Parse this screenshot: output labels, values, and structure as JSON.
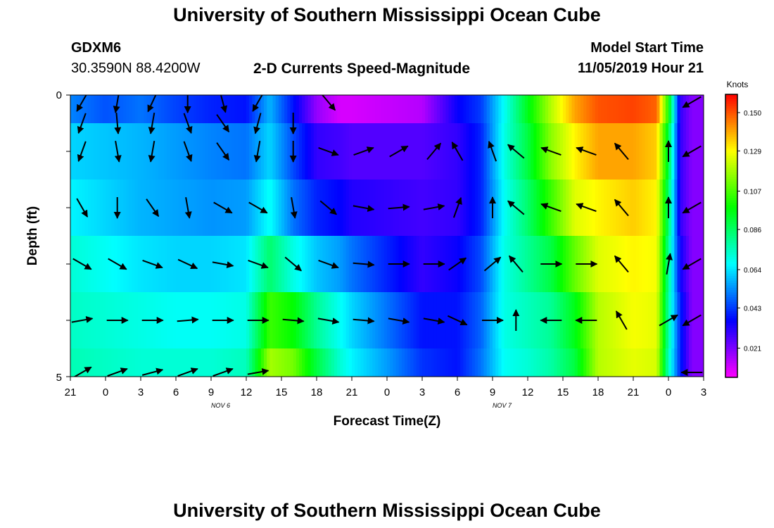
{
  "header": {
    "title": "University of Southern Mississippi Ocean Cube",
    "station": "GDXM6",
    "location": "30.3590N 88.4200W",
    "plot_title": "2-D Currents Speed-Magnitude",
    "model_start_label": "Model Start Time",
    "model_start_value": "11/05/2019 Hour 21"
  },
  "footer": {
    "title": "University of Southern Mississippi Ocean Cube"
  },
  "chart_data": {
    "type": "heatmap",
    "title": "2-D Currents Speed-Magnitude",
    "xlabel": "Forecast Time(Z)",
    "ylabel": "Depth (ft)",
    "x_tick_labels": [
      "21",
      "0",
      "3",
      "6",
      "9",
      "12",
      "15",
      "18",
      "21",
      "0",
      "3",
      "6",
      "9",
      "12",
      "15",
      "18",
      "21",
      "0",
      "3"
    ],
    "x_hours": [
      0,
      3,
      6,
      9,
      12,
      15,
      18,
      21,
      24,
      27,
      30,
      33,
      36,
      39,
      42,
      45,
      48,
      51,
      54
    ],
    "xlim": [
      0,
      54
    ],
    "date_labels": [
      {
        "text": "NOV 6",
        "hour": 15
      },
      {
        "text": "NOV 7",
        "hour": 39
      }
    ],
    "y_tick_labels": [
      "0",
      "5"
    ],
    "ylim": [
      0,
      5
    ],
    "depth_levels": [
      0,
      1,
      2,
      3,
      4,
      5
    ],
    "colorbar": {
      "unit": "Knots",
      "ticks": [
        "0.150",
        "0.129",
        "0.107",
        "0.086",
        "0.064",
        "0.043",
        "0.021"
      ],
      "tick_values": [
        0.15,
        0.129,
        0.107,
        0.086,
        0.064,
        0.043,
        0.021
      ],
      "range": [
        0.005,
        0.16
      ]
    },
    "speed_knots": {
      "time_hours": [
        0,
        3,
        6,
        9,
        12,
        15,
        17,
        19,
        21,
        23,
        24,
        27,
        30,
        33,
        35,
        37,
        39,
        41,
        43,
        45,
        48,
        50,
        51,
        52,
        53,
        54
      ],
      "depth_0": [
        0.052,
        0.046,
        0.05,
        0.044,
        0.04,
        0.038,
        0.058,
        0.038,
        0.018,
        0.01,
        0.01,
        0.012,
        0.014,
        0.035,
        0.043,
        0.068,
        0.095,
        0.12,
        0.14,
        0.15,
        0.152,
        0.148,
        0.1,
        0.03,
        0.02,
        0.02
      ],
      "depth_1": [
        0.062,
        0.06,
        0.058,
        0.055,
        0.052,
        0.05,
        0.062,
        0.045,
        0.03,
        0.028,
        0.026,
        0.026,
        0.026,
        0.03,
        0.04,
        0.07,
        0.09,
        0.115,
        0.13,
        0.14,
        0.14,
        0.135,
        0.09,
        0.03,
        0.02,
        0.02
      ],
      "depth_2": [
        0.066,
        0.062,
        0.058,
        0.056,
        0.054,
        0.055,
        0.068,
        0.05,
        0.04,
        0.036,
        0.032,
        0.03,
        0.028,
        0.03,
        0.04,
        0.068,
        0.085,
        0.105,
        0.125,
        0.13,
        0.135,
        0.13,
        0.085,
        0.03,
        0.02,
        0.02
      ],
      "depth_3": [
        0.072,
        0.068,
        0.064,
        0.062,
        0.062,
        0.064,
        0.085,
        0.07,
        0.06,
        0.055,
        0.05,
        0.04,
        0.03,
        0.035,
        0.045,
        0.07,
        0.08,
        0.09,
        0.11,
        0.125,
        0.13,
        0.128,
        0.08,
        0.035,
        0.02,
        0.02
      ],
      "depth_4": [
        0.074,
        0.072,
        0.07,
        0.068,
        0.068,
        0.07,
        0.105,
        0.098,
        0.08,
        0.068,
        0.062,
        0.05,
        0.038,
        0.038,
        0.048,
        0.07,
        0.075,
        0.08,
        0.095,
        0.12,
        0.128,
        0.126,
        0.078,
        0.04,
        0.02,
        0.02
      ],
      "depth_5": [
        0.076,
        0.074,
        0.072,
        0.072,
        0.072,
        0.075,
        0.118,
        0.112,
        0.09,
        0.072,
        0.066,
        0.055,
        0.042,
        0.038,
        0.05,
        0.068,
        0.072,
        0.078,
        0.09,
        0.12,
        0.126,
        0.124,
        0.075,
        0.04,
        0.02,
        0.02
      ]
    },
    "vector_directions_deg": {
      "time_hours": [
        1,
        4,
        7,
        10,
        13,
        16,
        19,
        22,
        25,
        28,
        31,
        33,
        36,
        38,
        41,
        44,
        47,
        51,
        53
      ],
      "depth_0": [
        210,
        190,
        205,
        180,
        165,
        210,
        null,
        140,
        null,
        null,
        null,
        null,
        null,
        null,
        null,
        null,
        null,
        null,
        240
      ],
      "depth_0_5": [
        200,
        175,
        190,
        160,
        145,
        195,
        180,
        null,
        null,
        null,
        null,
        null,
        null,
        null,
        null,
        null,
        null,
        null,
        null
      ],
      "depth_1": [
        200,
        170,
        190,
        160,
        145,
        190,
        180,
        110,
        70,
        60,
        40,
        330,
        340,
        310,
        290,
        290,
        320,
        0,
        240
      ],
      "depth_2": [
        150,
        180,
        145,
        170,
        120,
        120,
        170,
        130,
        100,
        85,
        80,
        20,
        0,
        310,
        290,
        290,
        320,
        0,
        240
      ],
      "depth_3": [
        120,
        120,
        110,
        115,
        100,
        110,
        130,
        110,
        95,
        90,
        90,
        55,
        50,
        320,
        90,
        90,
        320,
        10,
        240
      ],
      "depth_4": [
        80,
        90,
        90,
        85,
        90,
        90,
        95,
        100,
        95,
        100,
        100,
        115,
        90,
        0,
        270,
        270,
        330,
        60,
        240
      ],
      "depth_5": [
        60,
        70,
        75,
        70,
        70,
        80,
        null,
        null,
        null,
        null,
        null,
        null,
        null,
        null,
        null,
        null,
        null,
        null,
        270
      ]
    }
  }
}
